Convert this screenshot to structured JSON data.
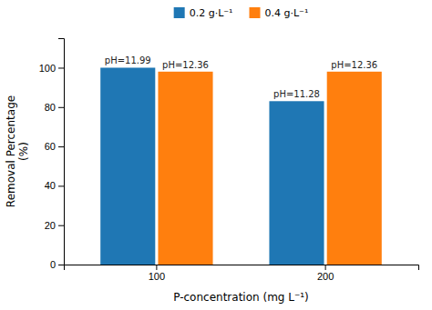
{
  "chart_data": {
    "type": "bar",
    "categories": [
      "100",
      "200"
    ],
    "series": [
      {
        "name": "0.2 g·L⁻¹",
        "values": [
          100,
          83
        ],
        "annotations": [
          "pH=11.99",
          "pH=11.28"
        ]
      },
      {
        "name": "0.4 g·L⁻¹",
        "values": [
          98,
          98
        ],
        "annotations": [
          "pH=12.36",
          "pH=12.36"
        ]
      }
    ],
    "xlabel": "P-concentration (mg L⁻¹)",
    "ylabel": "Removal Percentage\n(%)",
    "ylim": [
      0,
      115
    ],
    "yticks": [
      0,
      20,
      40,
      60,
      80,
      100
    ],
    "legend": "top"
  }
}
